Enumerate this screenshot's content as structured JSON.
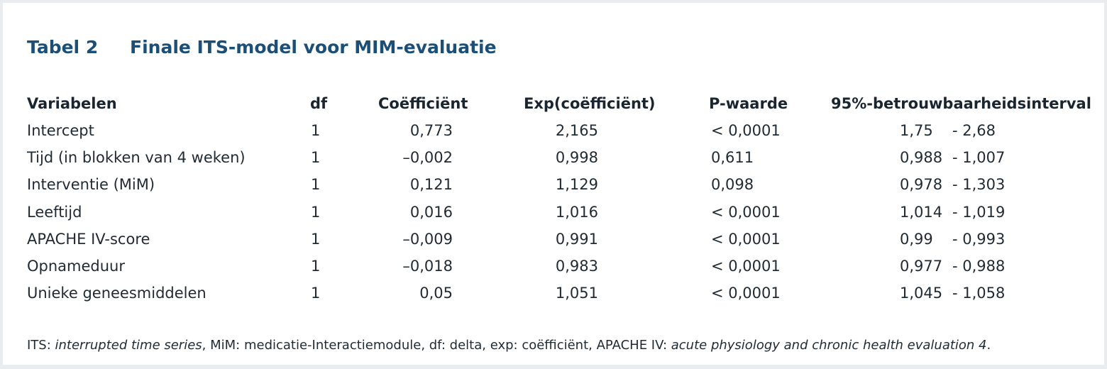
{
  "table": {
    "label": "Tabel 2",
    "title": "Finale ITS-model voor MIM-evaluatie",
    "headers": {
      "variable": "Variabelen",
      "df": "df",
      "coef": "Coëfficiënt",
      "exp": "Exp(coëfficiënt)",
      "p": "P-waarde",
      "ci": "95%-betrouwbaarheidsinterval"
    },
    "rows": [
      {
        "variable": "Intercept",
        "df": "1",
        "coef": "0,773",
        "exp": "2,165",
        "p": "< 0,0001",
        "ci_low": "1,75",
        "ci_high": "- 2,68"
      },
      {
        "variable": "Tijd (in blokken van 4 weken)",
        "df": "1",
        "coef": "–0,002",
        "exp": "0,998",
        "p": "0,611",
        "ci_low": "0,988",
        "ci_high": "- 1,007"
      },
      {
        "variable": "Interventie (MiM)",
        "df": "1",
        "coef": "0,121",
        "exp": "1,129",
        "p": "0,098",
        "ci_low": "0,978",
        "ci_high": "- 1,303"
      },
      {
        "variable": "Leeftijd",
        "df": "1",
        "coef": "0,016",
        "exp": "1,016",
        "p": "< 0,0001",
        "ci_low": "1,014",
        "ci_high": "- 1,019"
      },
      {
        "variable": "APACHE IV-score",
        "df": "1",
        "coef": "–0,009",
        "exp": "0,991",
        "p": "< 0,0001",
        "ci_low": "0,99",
        "ci_high": "- 0,993"
      },
      {
        "variable": "Opnameduur",
        "df": "1",
        "coef": "–0,018",
        "exp": "0,983",
        "p": "< 0,0001",
        "ci_low": "0,977",
        "ci_high": "- 0,988"
      },
      {
        "variable": "Unieke geneesmiddelen",
        "df": "1",
        "coef": "0,05",
        "exp": "1,051",
        "p": "< 0,0001",
        "ci_low": "1,045",
        "ci_high": "- 1,058"
      }
    ]
  },
  "footnote": {
    "part1": "ITS: ",
    "part2": "interrupted time series",
    "part3": ", MiM: medicatie-Interactiemodule, df: delta, exp: coëfficiënt, APACHE IV: ",
    "part4": "acute physiology and chronic health evaluation 4",
    "part5": "."
  },
  "colors": {
    "title": "#1b4f78",
    "background": "#e9edf0",
    "panel": "#ffffff"
  }
}
